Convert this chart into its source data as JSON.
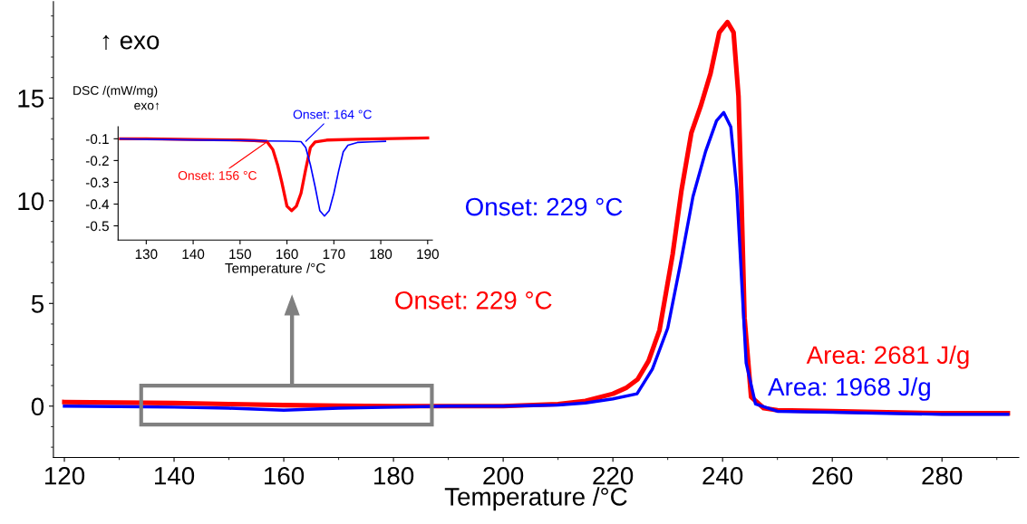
{
  "chart_data": [
    {
      "type": "line",
      "xlabel": "Temperature /°C",
      "xlim": [
        118,
        294
      ],
      "ylim": [
        -2.5,
        19.7
      ],
      "xticks": [
        120,
        140,
        160,
        180,
        200,
        220,
        240,
        260,
        280
      ],
      "yticks": [
        0,
        5,
        10,
        15
      ],
      "grid": false,
      "legend": false,
      "series": [
        {
          "color": "#ff0000",
          "x": [
            120,
            130,
            140,
            150,
            160,
            170,
            180,
            190,
            200,
            210,
            215,
            220,
            222.5,
            224.5,
            226.5,
            228.5,
            230.9,
            232.5,
            234.3,
            236,
            237.8,
            239.4,
            240.9,
            242,
            242.9,
            243.4,
            244,
            245.2,
            247.5,
            250,
            260,
            270,
            280,
            292
          ],
          "values": [
            0.2,
            0.17,
            0.15,
            0.1,
            0.05,
            0.02,
            0,
            0,
            0,
            0.1,
            0.25,
            0.6,
            0.9,
            1.3,
            2.2,
            3.7,
            7.4,
            10.5,
            13.3,
            14.6,
            16.2,
            18.2,
            18.7,
            18.2,
            15.1,
            10.5,
            4.3,
            0.45,
            -0.1,
            -0.2,
            -0.25,
            -0.3,
            -0.35,
            -0.35
          ]
        },
        {
          "color": "#0000ff",
          "x": [
            120,
            130,
            140,
            150,
            160,
            170,
            180,
            190,
            200,
            210,
            215,
            220,
            224.4,
            227.2,
            230,
            232.3,
            234.6,
            236.9,
            238.9,
            240.2,
            241.5,
            242.6,
            243.5,
            244.3,
            246,
            250,
            260,
            270,
            280,
            292
          ],
          "values": [
            0,
            -0.02,
            -0.05,
            -0.1,
            -0.2,
            -0.1,
            -0.05,
            0,
            0,
            0.05,
            0.15,
            0.35,
            0.6,
            1.8,
            3.8,
            6.9,
            10.2,
            12.4,
            13.9,
            14.3,
            13.6,
            10.5,
            6.0,
            2.1,
            0.1,
            -0.25,
            -0.3,
            -0.35,
            -0.4,
            -0.4
          ]
        }
      ],
      "annotations": [
        "↑ exo",
        "Onset: 229 °C",
        "Onset: 229 °C",
        "Area: 2681 J/g",
        "Area: 1968 J/g"
      ]
    },
    {
      "type": "line",
      "xlabel": "Temperature /°C",
      "ylabel": "DSC /(mW/mg)",
      "xlim": [
        124,
        191
      ],
      "ylim": [
        -0.565,
        -0.045
      ],
      "xticks": [
        130,
        140,
        150,
        160,
        170,
        180,
        190
      ],
      "yticks": [
        -0.1,
        -0.2,
        -0.3,
        -0.4,
        -0.5
      ],
      "grid": false,
      "legend": false,
      "series": [
        {
          "color": "#ff0000",
          "x": [
            124.5,
            130,
            140,
            150,
            153,
            155.7,
            157,
            158,
            158.9,
            160,
            161,
            162,
            163,
            164,
            165,
            166,
            168.5,
            175,
            180,
            190
          ],
          "values": [
            -0.1,
            -0.1,
            -0.103,
            -0.106,
            -0.108,
            -0.112,
            -0.15,
            -0.22,
            -0.3,
            -0.41,
            -0.43,
            -0.41,
            -0.35,
            -0.24,
            -0.14,
            -0.115,
            -0.106,
            -0.102,
            -0.1,
            -0.096
          ]
        },
        {
          "color": "#0000ff",
          "x": [
            124.5,
            130,
            140,
            150,
            155,
            160,
            163,
            164,
            165,
            166,
            167,
            168,
            169,
            170,
            171,
            172,
            173,
            175,
            178,
            181
          ],
          "values": [
            -0.1,
            -0.102,
            -0.105,
            -0.108,
            -0.11,
            -0.111,
            -0.113,
            -0.14,
            -0.22,
            -0.32,
            -0.43,
            -0.455,
            -0.43,
            -0.35,
            -0.25,
            -0.16,
            -0.13,
            -0.117,
            -0.114,
            -0.112
          ]
        }
      ],
      "annotations": [
        "exo↑",
        {
          "text": "Onset: 164 °C",
          "x": 164,
          "y": -0.112
        },
        {
          "text": "Onset: 156 °C",
          "x": 156,
          "y": -0.11
        }
      ]
    }
  ]
}
